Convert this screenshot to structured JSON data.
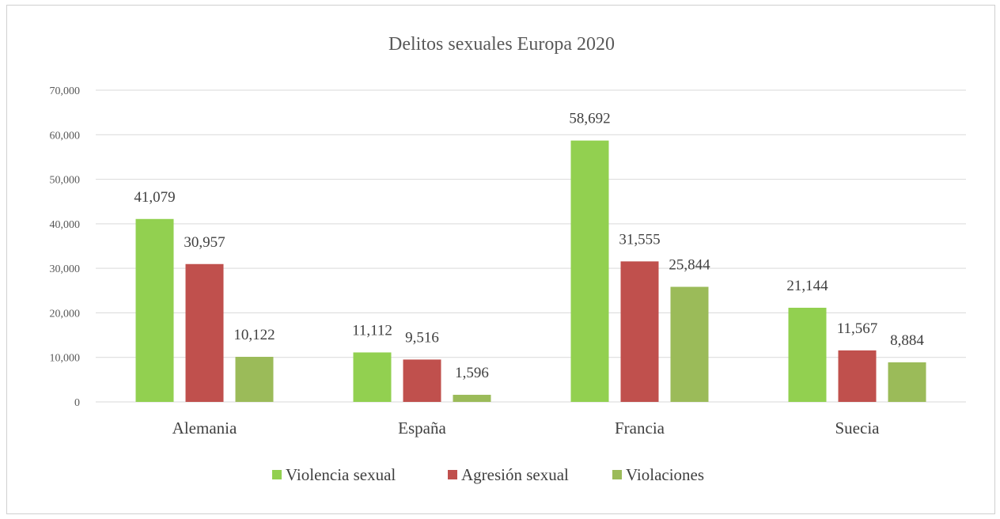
{
  "chart_data": {
    "type": "bar",
    "title": "Delitos sexuales  Europa 2020",
    "categories": [
      "Alemania",
      "España",
      "Francia",
      "Suecia"
    ],
    "series": [
      {
        "name": "Violencia sexual",
        "color": "#92d050",
        "values": [
          41079,
          11112,
          58692,
          21144
        ],
        "labels": [
          "41,079",
          "11,112",
          "58,692",
          "21,144"
        ]
      },
      {
        "name": "Agresión sexual",
        "color": "#c0504d",
        "values": [
          30957,
          9516,
          31555,
          11567
        ],
        "labels": [
          "30,957",
          "9,516",
          "31,555",
          "11,567"
        ]
      },
      {
        "name": "Violaciones",
        "color": "#9bbb59",
        "values": [
          10122,
          1596,
          25844,
          8884
        ],
        "labels": [
          "10,122",
          "1,596",
          "25,844",
          "8,884"
        ]
      }
    ],
    "ylim": [
      0,
      70000
    ],
    "yticks": [
      0,
      10000,
      20000,
      30000,
      40000,
      50000,
      60000,
      70000
    ],
    "ytick_labels": [
      "0",
      "10,000",
      "20,000",
      "30,000",
      "40,000",
      "50,000",
      "60,000",
      "70,000"
    ],
    "grid": true,
    "legend_position": "bottom",
    "xlabel": "",
    "ylabel": ""
  }
}
